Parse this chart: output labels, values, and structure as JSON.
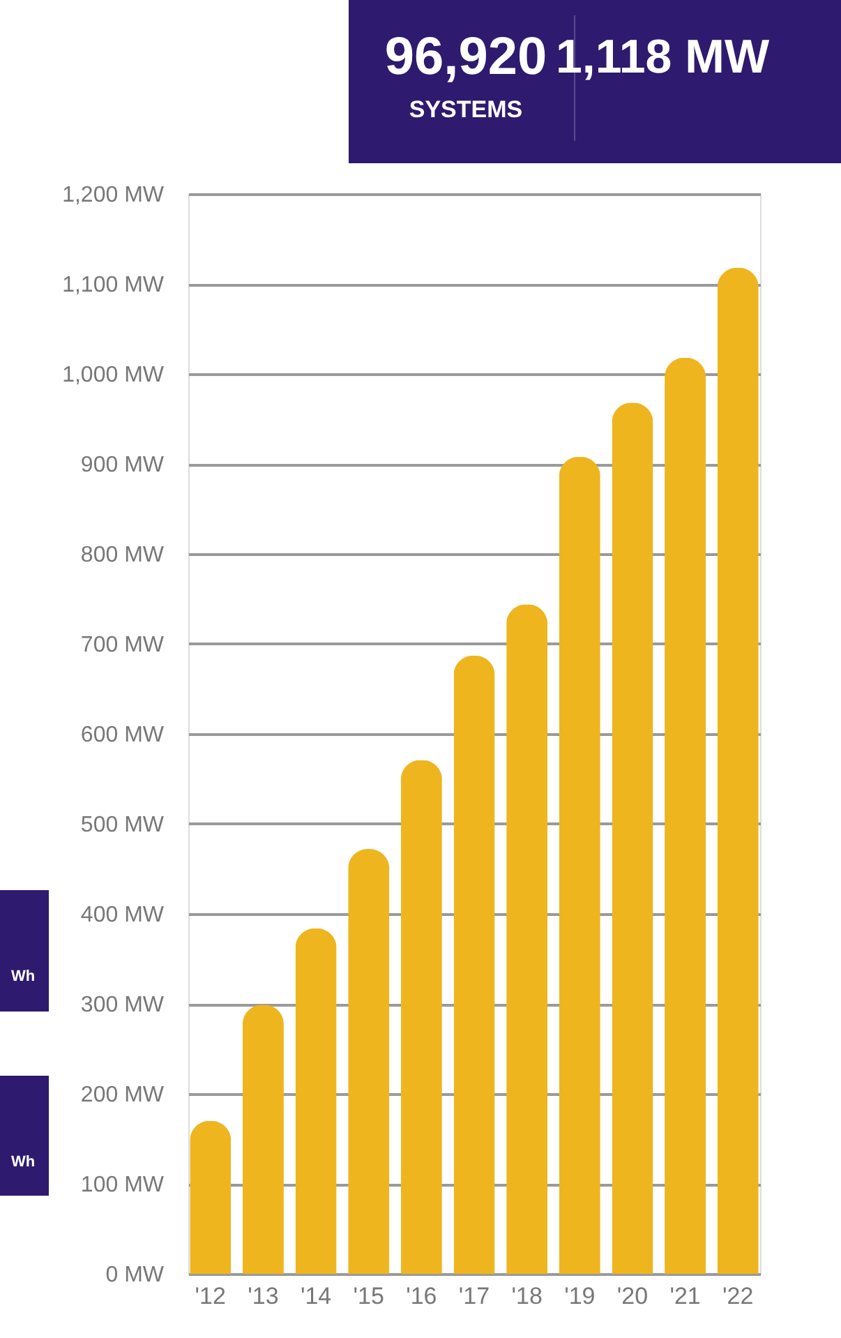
{
  "chart_data": {
    "type": "bar",
    "categories": [
      "'12",
      "'13",
      "'14",
      "'15",
      "'16",
      "'17",
      "'18",
      "'19",
      "'20",
      "'21",
      "'22"
    ],
    "values": [
      170,
      299,
      384,
      472,
      571,
      687,
      744,
      908,
      968,
      1018,
      1118
    ],
    "color": "#eeb51f",
    "ylim": [
      0,
      1200
    ],
    "yticks": [
      {
        "value": 0,
        "label": "0 MW"
      },
      {
        "value": 100,
        "label": "100 MW"
      },
      {
        "value": 200,
        "label": "200 MW"
      },
      {
        "value": 300,
        "label": "300 MW"
      },
      {
        "value": 400,
        "label": "400 MW"
      },
      {
        "value": 500,
        "label": "500 MW"
      },
      {
        "value": 600,
        "label": "600 MW"
      },
      {
        "value": 700,
        "label": "700 MW"
      },
      {
        "value": 800,
        "label": "800 MW"
      },
      {
        "value": 900,
        "label": "900 MW"
      },
      {
        "value": 1000,
        "label": "1,000 MW"
      },
      {
        "value": 1100,
        "label": "1,100 MW"
      },
      {
        "value": 1200,
        "label": "1,200 MW"
      }
    ],
    "grid": "y",
    "annotations": [
      "1,118 MW",
      "96,920",
      "SYSTEMS",
      "Wh",
      "Wh"
    ]
  }
}
